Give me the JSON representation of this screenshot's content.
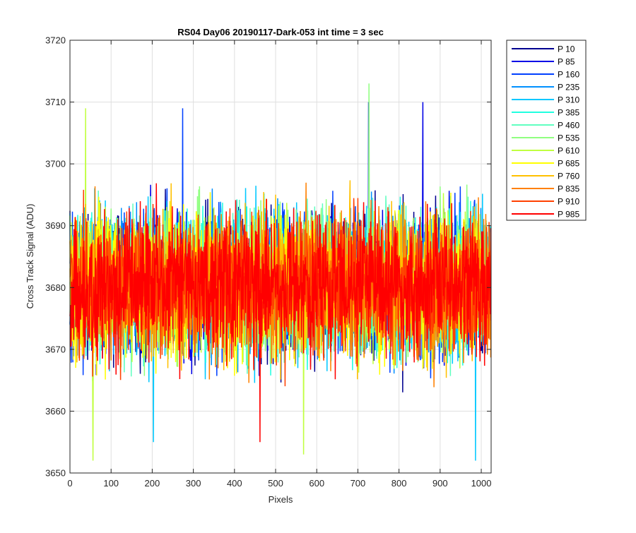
{
  "chart_data": {
    "type": "line",
    "title": "RS04 Day06 20190117-Dark-053 int time = 3 sec",
    "xlabel": "Pixels",
    "ylabel": "Cross Track Signal (ADU)",
    "xlim": [
      0,
      1024
    ],
    "ylim": [
      3650,
      3720
    ],
    "xticks": [
      0,
      100,
      200,
      300,
      400,
      500,
      600,
      700,
      800,
      900,
      1000
    ],
    "yticks": [
      3650,
      3660,
      3670,
      3680,
      3690,
      3700,
      3710,
      3720
    ],
    "grid": true,
    "legend_position": "outside-top-right",
    "x_points": 1024,
    "series": [
      {
        "name": "P 10",
        "color": "#00008f",
        "mean": 3680.5,
        "spread": 5.5
      },
      {
        "name": "P 85",
        "color": "#0000e6",
        "mean": 3680.5,
        "spread": 5.5
      },
      {
        "name": "P 160",
        "color": "#0040ff",
        "mean": 3680.5,
        "spread": 5.5
      },
      {
        "name": "P 235",
        "color": "#0090ff",
        "mean": 3680.5,
        "spread": 5.5
      },
      {
        "name": "P 310",
        "color": "#00c8ff",
        "mean": 3680.5,
        "spread": 5.5
      },
      {
        "name": "P 385",
        "color": "#20ffe0",
        "mean": 3680.5,
        "spread": 5.5
      },
      {
        "name": "P 460",
        "color": "#60ffc0",
        "mean": 3680.5,
        "spread": 5.5
      },
      {
        "name": "P 535",
        "color": "#90ff80",
        "mean": 3680.5,
        "spread": 5.5
      },
      {
        "name": "P 610",
        "color": "#c0ff40",
        "mean": 3680.5,
        "spread": 5.5
      },
      {
        "name": "P 685",
        "color": "#ffff00",
        "mean": 3680.5,
        "spread": 5.5
      },
      {
        "name": "P 760",
        "color": "#ffc000",
        "mean": 3680.5,
        "spread": 5.5
      },
      {
        "name": "P 835",
        "color": "#ff8000",
        "mean": 3680.5,
        "spread": 5.5
      },
      {
        "name": "P 910",
        "color": "#ff4000",
        "mean": 3680.5,
        "spread": 5.5
      },
      {
        "name": "P 985",
        "color": "#ff0000",
        "mean": 3680.5,
        "spread": 5.5
      }
    ],
    "annotations": [
      {
        "series": "P 535",
        "x": 727,
        "y": 3713
      },
      {
        "series": "P 85",
        "x": 726,
        "y": 3710
      },
      {
        "series": "P 85",
        "x": 858,
        "y": 3710
      },
      {
        "series": "P 160",
        "x": 274,
        "y": 3709
      },
      {
        "series": "P 610",
        "x": 38,
        "y": 3709
      },
      {
        "series": "P 610",
        "x": 56,
        "y": 3652
      },
      {
        "series": "P 310",
        "x": 986,
        "y": 3652
      },
      {
        "series": "P 610",
        "x": 568,
        "y": 3653
      },
      {
        "series": "P 985",
        "x": 462,
        "y": 3655
      },
      {
        "series": "P 310",
        "x": 203,
        "y": 3655
      }
    ]
  }
}
